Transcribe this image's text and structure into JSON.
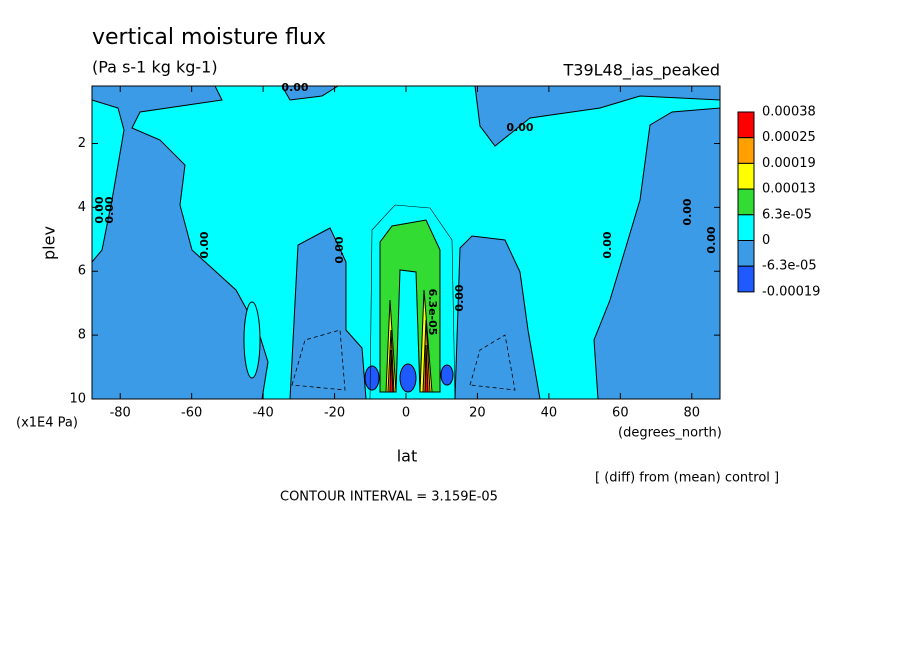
{
  "chart_data": {
    "type": "contour",
    "title": "vertical moisture flux",
    "subtitle": "(Pa s-1 kg kg-1)",
    "experiment": "T39L48_ias_peaked",
    "x_label": "lat",
    "x_unit": "(degrees_north)",
    "y_label": "plev",
    "y_unit": "(x1E4 Pa)",
    "note": "[ (diff) from (mean) control ]",
    "contour_interval": "CONTOUR INTERVAL = 3.159E-05",
    "xlim": [
      -87.9,
      87.9
    ],
    "xticks": [
      -80,
      -60,
      -40,
      -20,
      0,
      20,
      40,
      60,
      80
    ],
    "ylim": [
      0.2,
      10
    ],
    "y_inverted": true,
    "yticks": [
      2,
      4,
      6,
      8,
      10
    ],
    "levels": [
      0.00038,
      0.00025,
      0.00019,
      0.00013,
      {
        "value": 6.3e-05,
        "label": "6.3e-05"
      },
      0,
      {
        "value": -6.3e-05,
        "label": "-6.3e-05"
      },
      -0.00019
    ],
    "level_colors": [
      "#ff0000",
      "#ffa000",
      "#ffff00",
      "#32dc32",
      "#00ffff",
      "#3c9be6",
      "#1e5aff"
    ],
    "contour_labels": [
      "0.00",
      "0.00",
      "0.00",
      "0.00",
      "0.00",
      "0.00",
      "0.00",
      "0.00",
      "0.00",
      "0.00",
      "6.3e-05"
    ]
  }
}
